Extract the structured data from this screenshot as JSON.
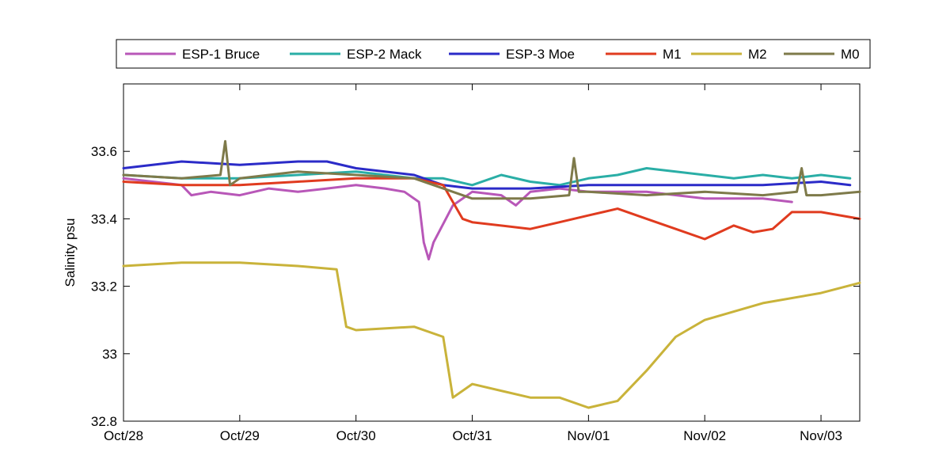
{
  "chart_data": {
    "type": "line",
    "title": "",
    "xlabel": "",
    "ylabel": "Salinity psu",
    "xlim": [
      "2009-10-28",
      "2009-11-03T08:00"
    ],
    "ylim": [
      32.8,
      33.8
    ],
    "x_ticks": [
      "Oct/28",
      "Oct/29",
      "Oct/30",
      "Oct/31",
      "Nov/01",
      "Nov/02",
      "Nov/03"
    ],
    "y_ticks": [
      "32.8",
      "33",
      "33.2",
      "33.4",
      "33.6"
    ],
    "y_tick_values": [
      32.8,
      33.0,
      33.2,
      33.4,
      33.6
    ],
    "legend_position": "top-outside",
    "grid": false,
    "series": [
      {
        "name": "ESP-1 Bruce",
        "color": "#b857b8",
        "x": [
          "2009-10-28T00:00",
          "2009-10-28T12:00",
          "2009-10-28T14:00",
          "2009-10-28T18:00",
          "2009-10-29T00:00",
          "2009-10-29T06:00",
          "2009-10-29T12:00",
          "2009-10-29T18:00",
          "2009-10-30T00:00",
          "2009-10-30T06:00",
          "2009-10-30T10:00",
          "2009-10-30T13:00",
          "2009-10-30T14:00",
          "2009-10-30T15:00",
          "2009-10-30T16:00",
          "2009-10-30T20:00",
          "2009-10-31T00:00",
          "2009-10-31T06:00",
          "2009-10-31T09:00",
          "2009-10-31T12:00",
          "2009-10-31T18:00",
          "2009-11-01T00:00",
          "2009-11-01T12:00",
          "2009-11-02T00:00",
          "2009-11-02T12:00",
          "2009-11-02T18:00"
        ],
        "y": [
          33.52,
          33.5,
          33.47,
          33.48,
          33.47,
          33.49,
          33.48,
          33.49,
          33.5,
          33.49,
          33.48,
          33.45,
          33.33,
          33.28,
          33.33,
          33.44,
          33.48,
          33.47,
          33.44,
          33.48,
          33.49,
          33.48,
          33.48,
          33.46,
          33.46,
          33.45
        ]
      },
      {
        "name": "ESP-2 Mack",
        "color": "#2aaea6",
        "x": [
          "2009-10-28T00:00",
          "2009-10-28T12:00",
          "2009-10-29T00:00",
          "2009-10-29T12:00",
          "2009-10-30T00:00",
          "2009-10-30T12:00",
          "2009-10-30T18:00",
          "2009-10-31T00:00",
          "2009-10-31T06:00",
          "2009-10-31T12:00",
          "2009-10-31T18:00",
          "2009-11-01T00:00",
          "2009-11-01T06:00",
          "2009-11-01T12:00",
          "2009-11-01T18:00",
          "2009-11-02T00:00",
          "2009-11-02T06:00",
          "2009-11-02T12:00",
          "2009-11-02T18:00",
          "2009-11-03T00:00",
          "2009-11-03T06:00"
        ],
        "y": [
          33.53,
          33.52,
          33.52,
          33.53,
          33.54,
          33.52,
          33.52,
          33.5,
          33.53,
          33.51,
          33.5,
          33.52,
          33.53,
          33.55,
          33.54,
          33.53,
          33.52,
          33.53,
          33.52,
          33.53,
          33.52
        ]
      },
      {
        "name": "ESP-3 Moe",
        "color": "#2b2bc8",
        "x": [
          "2009-10-28T00:00",
          "2009-10-28T12:00",
          "2009-10-29T00:00",
          "2009-10-29T12:00",
          "2009-10-29T18:00",
          "2009-10-30T00:00",
          "2009-10-30T12:00",
          "2009-10-30T18:00",
          "2009-10-31T00:00",
          "2009-10-31T12:00",
          "2009-11-01T00:00",
          "2009-11-01T12:00",
          "2009-11-02T00:00",
          "2009-11-02T12:00",
          "2009-11-03T00:00",
          "2009-11-03T06:00"
        ],
        "y": [
          33.55,
          33.57,
          33.56,
          33.57,
          33.57,
          33.55,
          33.53,
          33.5,
          33.49,
          33.49,
          33.5,
          33.5,
          33.5,
          33.5,
          33.51,
          33.5
        ]
      },
      {
        "name": "M1",
        "color": "#e03b1f",
        "x": [
          "2009-10-28T00:00",
          "2009-10-28T12:00",
          "2009-10-29T00:00",
          "2009-10-29T12:00",
          "2009-10-30T00:00",
          "2009-10-30T12:00",
          "2009-10-30T18:00",
          "2009-10-30T22:00",
          "2009-10-31T00:00",
          "2009-10-31T12:00",
          "2009-10-31T18:00",
          "2009-11-01T00:00",
          "2009-11-01T06:00",
          "2009-11-01T12:00",
          "2009-11-01T18:00",
          "2009-11-02T00:00",
          "2009-11-02T06:00",
          "2009-11-02T10:00",
          "2009-11-02T14:00",
          "2009-11-02T18:00",
          "2009-11-03T00:00",
          "2009-11-03T08:00"
        ],
        "y": [
          33.51,
          33.5,
          33.5,
          33.51,
          33.52,
          33.52,
          33.5,
          33.4,
          33.39,
          33.37,
          33.39,
          33.41,
          33.43,
          33.4,
          33.37,
          33.34,
          33.38,
          33.36,
          33.37,
          33.42,
          33.42,
          33.4
        ]
      },
      {
        "name": "M2",
        "color": "#c9b33a",
        "x": [
          "2009-10-28T00:00",
          "2009-10-28T12:00",
          "2009-10-29T00:00",
          "2009-10-29T12:00",
          "2009-10-29T20:00",
          "2009-10-29T22:00",
          "2009-10-30T00:00",
          "2009-10-30T12:00",
          "2009-10-30T18:00",
          "2009-10-30T20:00",
          "2009-10-31T00:00",
          "2009-10-31T12:00",
          "2009-10-31T18:00",
          "2009-11-01T00:00",
          "2009-11-01T06:00",
          "2009-11-01T12:00",
          "2009-11-01T18:00",
          "2009-11-02T00:00",
          "2009-11-02T12:00",
          "2009-11-03T00:00",
          "2009-11-03T08:00"
        ],
        "y": [
          33.26,
          33.27,
          33.27,
          33.26,
          33.25,
          33.08,
          33.07,
          33.08,
          33.05,
          32.87,
          32.91,
          32.87,
          32.87,
          32.84,
          32.86,
          32.95,
          33.05,
          33.1,
          33.15,
          33.18,
          33.21
        ]
      },
      {
        "name": "M0",
        "color": "#7e7a4a",
        "x": [
          "2009-10-28T00:00",
          "2009-10-28T12:00",
          "2009-10-28T20:00",
          "2009-10-28T21:00",
          "2009-10-28T22:00",
          "2009-10-29T00:00",
          "2009-10-29T12:00",
          "2009-10-30T00:00",
          "2009-10-30T12:00",
          "2009-10-30T20:00",
          "2009-10-31T00:00",
          "2009-10-31T12:00",
          "2009-10-31T20:00",
          "2009-10-31T21:00",
          "2009-10-31T22:00",
          "2009-11-01T00:00",
          "2009-11-01T12:00",
          "2009-11-02T00:00",
          "2009-11-02T12:00",
          "2009-11-02T19:00",
          "2009-11-02T20:00",
          "2009-11-02T21:00",
          "2009-11-03T00:00",
          "2009-11-03T08:00"
        ],
        "y": [
          33.53,
          33.52,
          33.53,
          33.63,
          33.5,
          33.52,
          33.54,
          33.53,
          33.52,
          33.48,
          33.46,
          33.46,
          33.47,
          33.58,
          33.48,
          33.48,
          33.47,
          33.48,
          33.47,
          33.48,
          33.55,
          33.47,
          33.47,
          33.48
        ]
      }
    ]
  }
}
